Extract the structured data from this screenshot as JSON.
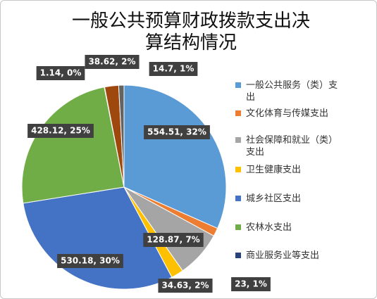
{
  "chart_data": {
    "type": "pie",
    "title": "一般公共预算财政拨款支出决算结构情况",
    "categories": [
      "一般公共服务（类）支出",
      "文化体育与传媒支出",
      "社会保障和就业（类）支出",
      "卫生健康支出",
      "城乡社区支出",
      "农林水支出",
      "商业服务业等支出",
      null,
      null
    ],
    "values": [
      554.51,
      23,
      128.87,
      34.63,
      530.18,
      428.12,
      1.14,
      38.62,
      14.7
    ],
    "value_labels": [
      "554.51, 32%",
      "23, 1%",
      "128.87, 7%",
      "34.63, 2%",
      "530.18, 30%",
      "428.12, 25%",
      "1.14, 0%",
      "38.62, 2%",
      "14.7, 1%"
    ],
    "colors": [
      "#5b9bd5",
      "#ed7d31",
      "#a5a5a5",
      "#ffc000",
      "#4472c4",
      "#70ad47",
      "#264478",
      "#9e480e",
      "#636363"
    ],
    "legend": "right"
  }
}
